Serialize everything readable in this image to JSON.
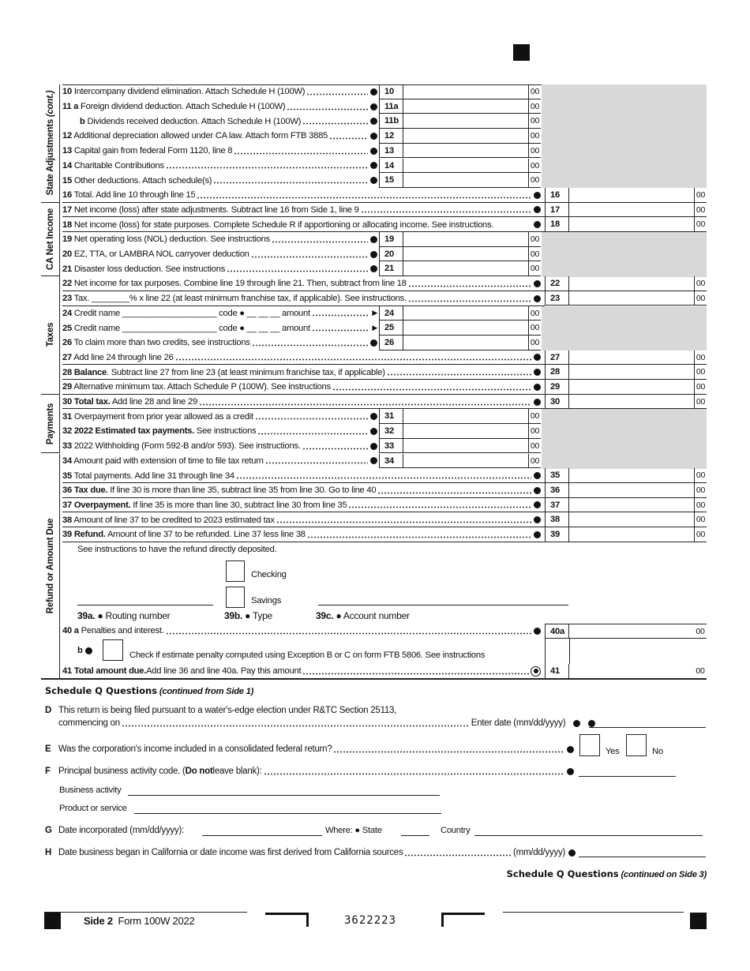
{
  "sections": [
    {
      "label": "State Adjustments",
      "suffix": " (cont.)",
      "from": 0,
      "to": 8
    },
    {
      "label": "CA Net Income",
      "suffix": "",
      "from": 8,
      "to": 13
    },
    {
      "label": "Taxes",
      "suffix": "",
      "from": 13,
      "to": 21
    },
    {
      "label": "Payments",
      "suffix": "",
      "from": 21,
      "to": 25
    },
    {
      "label": "Refund or Amount Due",
      "suffix": "",
      "from": 25,
      "to": 40
    }
  ],
  "rows": [
    {
      "num": "10",
      "text": "Intercompany dividend elimination. Attach Schedule H (100W)",
      "box": "inner",
      "line": "10"
    },
    {
      "num": "11 a",
      "text": "Foreign dividend deduction. Attach Schedule H (100W)",
      "box": "inner",
      "line": "11a"
    },
    {
      "num": "b",
      "indent": true,
      "text": "Dividends received deduction. Attach Schedule H (100W)",
      "box": "inner",
      "line": "11b"
    },
    {
      "num": "12",
      "text": "Additional depreciation allowed under CA law. Attach form FTB 3885",
      "box": "inner",
      "line": "12"
    },
    {
      "num": "13",
      "text": "Capital gain from federal Form 1120, line 8",
      "box": "inner",
      "line": "13"
    },
    {
      "num": "14",
      "text": "Charitable Contributions",
      "box": "inner",
      "line": "14"
    },
    {
      "num": "15",
      "text": "Other deductions. Attach schedule(s)",
      "box": "inner",
      "line": "15"
    },
    {
      "num": "16",
      "text": "Total. Add line 10 through line 15",
      "box": "outer",
      "line": "16"
    },
    {
      "num": "17",
      "text": "Net income (loss) after state adjustments. Subtract line 16 from Side 1, line 9",
      "box": "outer",
      "line": "17"
    },
    {
      "num": "18",
      "text": "Net income (loss) for state purposes. Complete Schedule R if apportioning or allocating income. See instructions.",
      "box": "outer",
      "line": "18",
      "nodots": true
    },
    {
      "num": "19",
      "text": "Net operating loss (NOL) deduction. See instructions",
      "box": "inner",
      "line": "19"
    },
    {
      "num": "20",
      "text": "EZ, TTA, or LAMBRA NOL carryover deduction",
      "box": "inner",
      "line": "20"
    },
    {
      "num": "21",
      "text": "Disaster loss deduction. See instructions",
      "box": "inner",
      "line": "21"
    },
    {
      "num": "22",
      "text": "Net income for tax purposes. Combine line 19 through line 21. Then, subtract from line 18",
      "box": "outer",
      "line": "22"
    },
    {
      "num": "23",
      "text": "Tax. ________% x line 22 (at least minimum franchise tax, if applicable). See instructions.",
      "box": "outer",
      "line": "23"
    },
    {
      "num": "24",
      "text": "Credit name ____________________ code ● __ __ __ amount",
      "box": "inner",
      "line": "24",
      "arrow": true
    },
    {
      "num": "25",
      "text": "Credit name ____________________ code ● __ __ __ amount",
      "box": "inner",
      "line": "25",
      "arrow": true
    },
    {
      "num": "26",
      "text": "To claim more than two credits, see instructions",
      "box": "inner",
      "line": "26"
    },
    {
      "num": "27",
      "text": "Add line 24 through line 26",
      "box": "outer",
      "line": "27"
    },
    {
      "num": "28",
      "bold": "Balance",
      "text": ". Subtract line 27 from line 23 (at least minimum franchise tax, if applicable)",
      "box": "outer",
      "line": "28"
    },
    {
      "num": "29",
      "text": "Alternative minimum tax. Attach Schedule P (100W). See instructions",
      "box": "outer",
      "line": "29"
    },
    {
      "num": "30",
      "bold": "Total tax.",
      "text": " Add line 28 and line 29",
      "box": "outer",
      "line": "30"
    },
    {
      "num": "31",
      "text": "Overpayment from prior year allowed as a credit",
      "box": "inner",
      "line": "31"
    },
    {
      "num": "32",
      "bold": "2022 Estimated tax payments.",
      "text": " See instructions",
      "box": "inner",
      "line": "32"
    },
    {
      "num": "33",
      "text": "2022 Withholding (Form 592-B and/or 593). See instructions.",
      "box": "inner",
      "line": "33"
    },
    {
      "num": "34",
      "text": "Amount paid with extension of time to file tax return",
      "box": "inner",
      "line": "34"
    },
    {
      "num": "35",
      "text": "Total payments. Add line 31 through line 34",
      "box": "outer",
      "line": "35"
    },
    {
      "num": "36",
      "bold": "Tax due.",
      "text": " If line 30 is more than line 35, subtract line 35 from line 30. Go to line 40",
      "box": "outer",
      "line": "36"
    },
    {
      "num": "37",
      "bold": "Overpayment.",
      "text": " If line 35 is more than line 30, subtract line 30 from line 35",
      "box": "outer",
      "line": "37"
    },
    {
      "num": "38",
      "text": "Amount of line 37 to be credited to 2023 estimated tax",
      "box": "outer",
      "line": "38"
    },
    {
      "num": "39",
      "bold": "Refund.",
      "text": " Amount of line 37 to be refunded. Line 37 less line 38",
      "box": "outer",
      "line": "39"
    }
  ],
  "cents": "00",
  "refund": {
    "note": "See instructions to have the refund directly deposited.",
    "checking": "Checking",
    "savings": "Savings",
    "routing_num": "39a.",
    "routing": "Routing number",
    "type_num": "39b.",
    "type": "Type",
    "account_num": "39c.",
    "account": "Account number"
  },
  "line40a": {
    "num": "40 a",
    "text": "Penalties and interest.",
    "line": "40a"
  },
  "line40b": {
    "num": "b",
    "text": "Check if estimate penalty computed using Exception B or C on form FTB 5806. See instructions"
  },
  "line41": {
    "num": "41",
    "bold": "Total amount due.",
    "text": " Add line 36 and line 40a. Pay this amount",
    "line": "41"
  },
  "schedule_q": {
    "title": "Schedule Q Questions",
    "subtitle": "(continued from Side 1)",
    "D": {
      "letter": "D",
      "text": "This return is being filed pursuant to a water's-edge election under R&TC Section 25113,",
      "text2": "commencing on",
      "tail": "Enter date (mm/dd/yyyy)"
    },
    "E": {
      "letter": "E",
      "text": "Was the corporation's income included in a consolidated federal return?",
      "yes": "Yes",
      "no": "No"
    },
    "F": {
      "letter": "F",
      "text": "Principal business activity code. (",
      "bold": "Do not",
      "text_end": " leave blank):",
      "business": "Business activity",
      "product": "Product or service"
    },
    "G": {
      "letter": "G",
      "text": "Date incorporated (mm/dd/yyyy):",
      "where": "Where:",
      "state": "State",
      "country": "Country"
    },
    "H": {
      "letter": "H",
      "text": "Date business began in California or date income was first derived from California sources",
      "tail": "(mm/dd/yyyy)"
    },
    "continued": "Schedule Q Questions",
    "continued_sub": "(continued on Side 3)"
  },
  "footer": {
    "side": "Side 2",
    "form": "Form 100W  2022",
    "code": "3622223"
  }
}
